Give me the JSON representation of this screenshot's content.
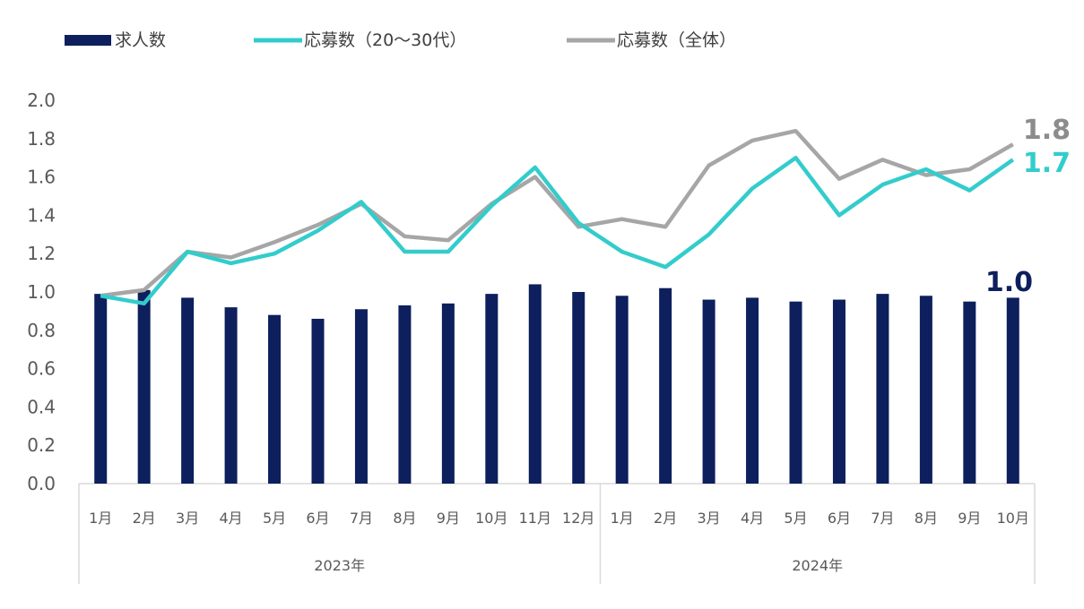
{
  "chart_data": {
    "type": "bar",
    "title": "",
    "legend_position": "top-left",
    "ylim": [
      0,
      2.0
    ],
    "yticks": [
      "0.0",
      "0.2",
      "0.4",
      "0.6",
      "0.8",
      "1.0",
      "1.2",
      "1.4",
      "1.6",
      "1.8",
      "2.0"
    ],
    "categories": [
      "1月",
      "2月",
      "3月",
      "4月",
      "5月",
      "6月",
      "7月",
      "8月",
      "9月",
      "10月",
      "11月",
      "12月",
      "1月",
      "2月",
      "3月",
      "4月",
      "5月",
      "6月",
      "7月",
      "8月",
      "9月",
      "10月"
    ],
    "years": [
      {
        "label": "2023年",
        "count": 12
      },
      {
        "label": "2024年",
        "count": 10
      }
    ],
    "series": [
      {
        "name": "求人数",
        "type": "bar",
        "color": "#0d1f5c",
        "values": [
          0.99,
          1.01,
          0.97,
          0.92,
          0.88,
          0.86,
          0.91,
          0.93,
          0.94,
          0.99,
          1.04,
          1.0,
          0.98,
          1.02,
          0.96,
          0.97,
          0.95,
          0.96,
          0.99,
          0.98,
          0.95,
          0.97
        ],
        "end_label": "1.0"
      },
      {
        "name": "応募数（20～30代）",
        "type": "line",
        "color": "#33cccc",
        "values": [
          0.98,
          0.94,
          1.21,
          1.15,
          1.2,
          1.32,
          1.47,
          1.21,
          1.21,
          1.45,
          1.65,
          1.36,
          1.21,
          1.13,
          1.3,
          1.54,
          1.7,
          1.4,
          1.56,
          1.64,
          1.53,
          1.69
        ],
        "end_label": "1.7"
      },
      {
        "name": "応募数（全体）",
        "type": "line",
        "color": "#a6a6a6",
        "values": [
          0.98,
          1.01,
          1.21,
          1.18,
          1.26,
          1.35,
          1.46,
          1.29,
          1.27,
          1.46,
          1.6,
          1.34,
          1.38,
          1.34,
          1.66,
          1.79,
          1.84,
          1.59,
          1.69,
          1.61,
          1.64,
          1.77
        ],
        "end_label": "1.8"
      }
    ]
  }
}
